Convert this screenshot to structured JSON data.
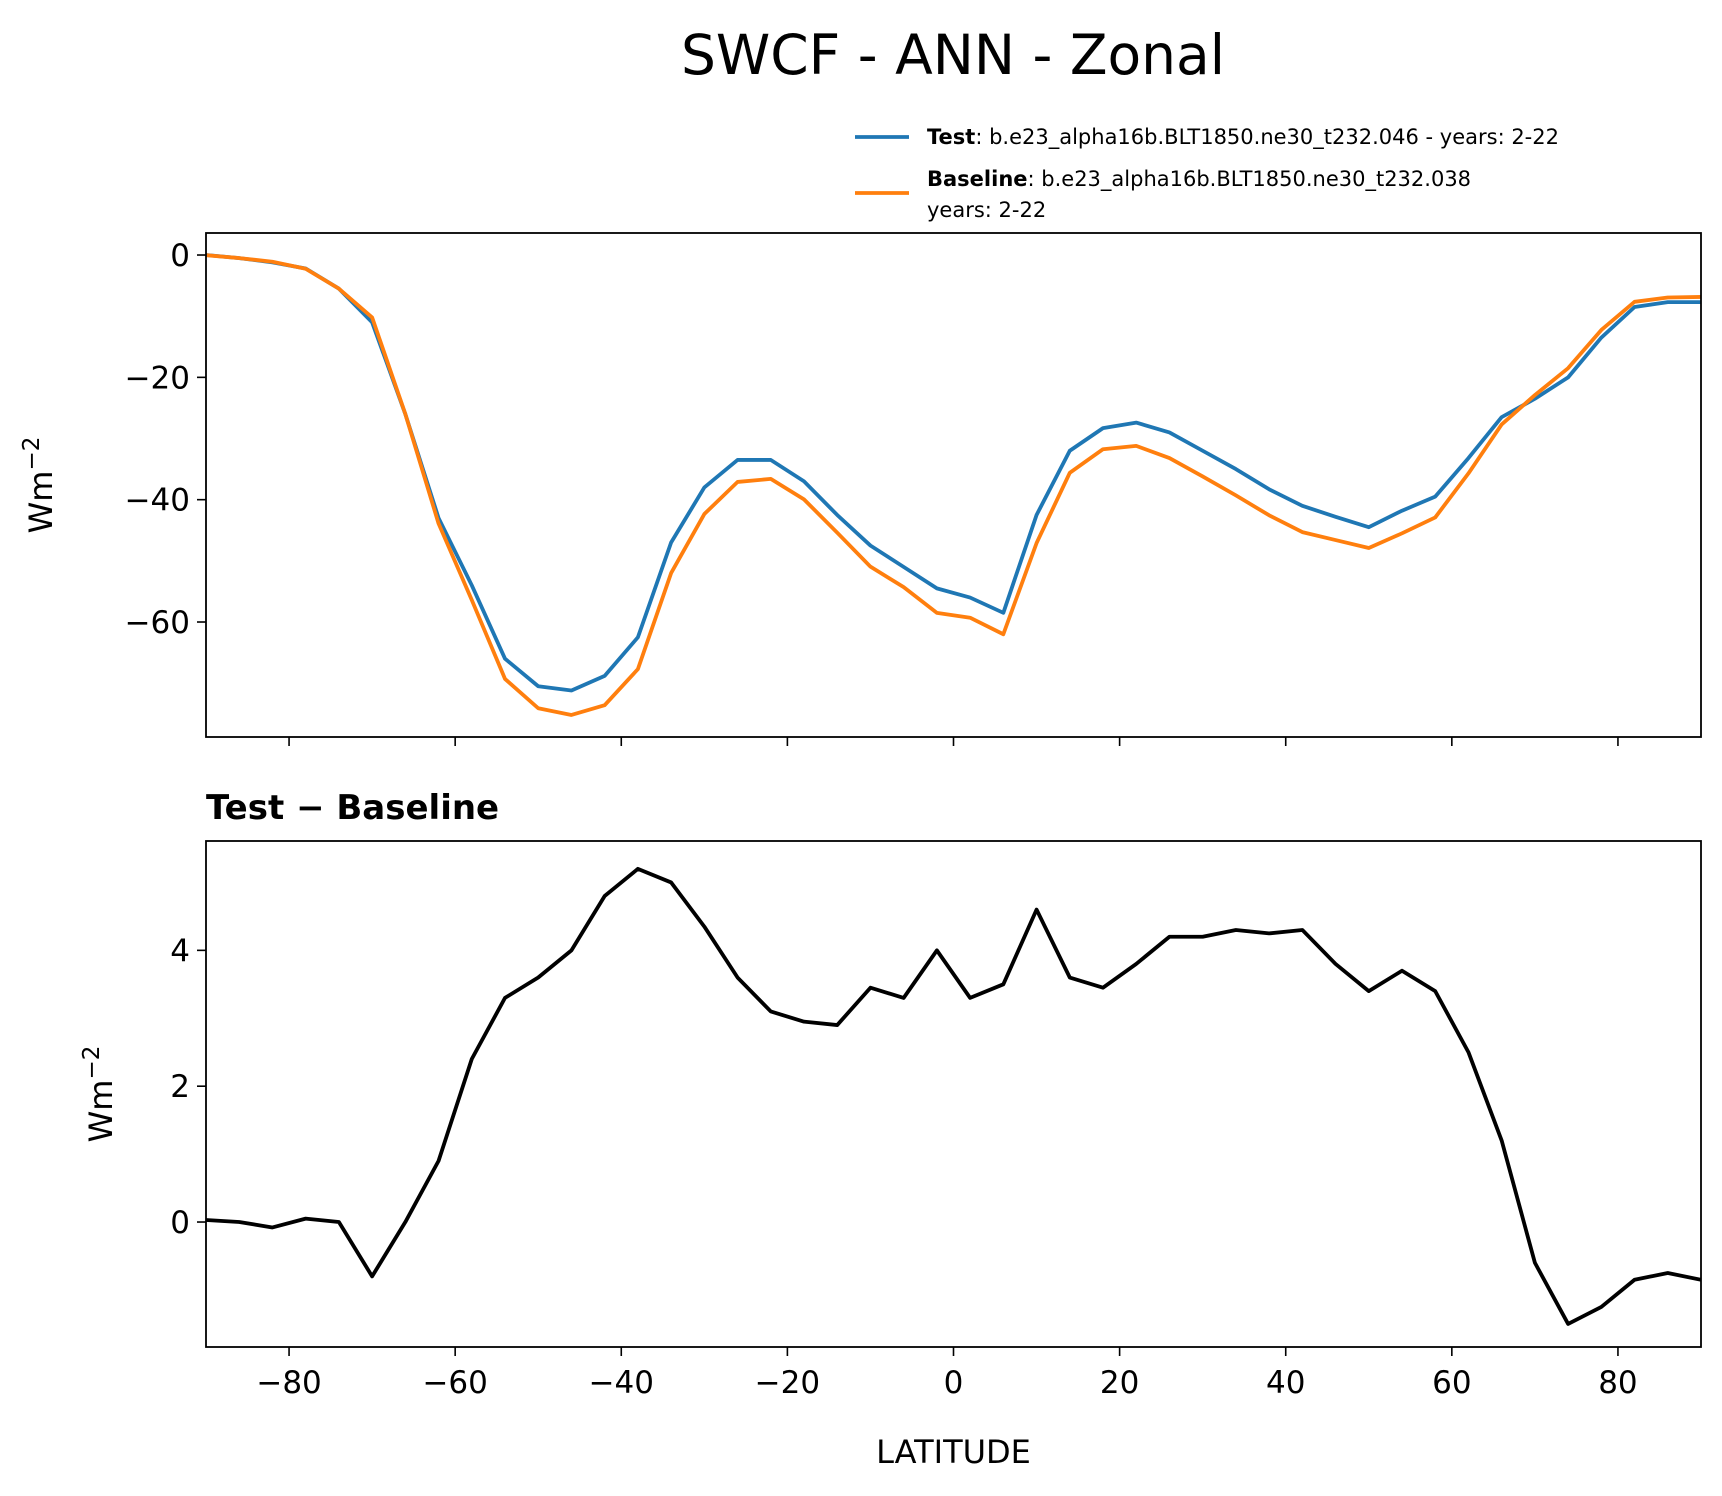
{
  "chart_data": [
    {
      "type": "line",
      "title": "SWCF - ANN - Zonal",
      "ylabel": "Wm",
      "ylabel_sup": "−2",
      "x": [
        -90,
        -86,
        -82,
        -78,
        -74,
        -70,
        -66,
        -62,
        -58,
        -54,
        -50,
        -46,
        -42,
        -38,
        -34,
        -30,
        -26,
        -22,
        -18,
        -14,
        -10,
        -6,
        -2,
        2,
        6,
        10,
        14,
        18,
        22,
        26,
        30,
        34,
        38,
        42,
        46,
        50,
        54,
        58,
        62,
        66,
        70,
        74,
        78,
        82,
        86,
        90
      ],
      "series": [
        {
          "name": "Test",
          "label_lines": [
            ": b.e23_alpha16b.BLT1850.ne30_t232.046 - years: 2-22"
          ],
          "color": "#1f77b4",
          "values": [
            0,
            -0.5,
            -1.2,
            -2.2,
            -5.5,
            -11,
            -26,
            -43,
            -54,
            -66,
            -70.5,
            -71.2,
            -68.8,
            -62.5,
            -47,
            -38,
            -33.5,
            -33.5,
            -37,
            -42.5,
            -47.5,
            -51,
            -54.5,
            -56,
            -58.5,
            -42.5,
            -32,
            -28.3,
            -27.4,
            -29,
            -32,
            -35,
            -38.3,
            -41,
            -42.8,
            -44.5,
            -41.8,
            -39.5,
            -33.2,
            -26.5,
            -23.5,
            -20,
            -13.5,
            -8.5,
            -7.7,
            -7.7
          ]
        },
        {
          "name": "Baseline",
          "label_lines": [
            ": b.e23_alpha16b.BLT1850.ne30_t232.038",
            "years: 2-22"
          ],
          "color": "#ff7f0e",
          "values": [
            -0.03,
            -0.5,
            -1.1,
            -2.25,
            -5.5,
            -10.2,
            -26,
            -43.9,
            -56.4,
            -69.3,
            -74.1,
            -75.2,
            -73.6,
            -67.7,
            -52,
            -42.35,
            -37.1,
            -36.6,
            -39.95,
            -45.4,
            -50.95,
            -54.3,
            -58.5,
            -59.3,
            -62,
            -47.1,
            -35.6,
            -31.75,
            -31.2,
            -33.2,
            -36.2,
            -39.3,
            -42.55,
            -45.3,
            -46.6,
            -47.9,
            -45.5,
            -42.9,
            -35.7,
            -27.7,
            -22.9,
            -18.5,
            -12.25,
            -7.65,
            -6.95,
            -6.85
          ]
        }
      ],
      "xlim": [
        -90,
        90
      ],
      "xticks": [
        -80,
        -60,
        -40,
        -20,
        0,
        20,
        40,
        60,
        80
      ],
      "ylim": [
        -78.8,
        3.6
      ],
      "yticks": [
        0,
        {
          "value": -20,
          "label": "−20"
        },
        {
          "value": -40,
          "label": "−40"
        },
        {
          "value": -60,
          "label": "−60"
        }
      ]
    },
    {
      "type": "line",
      "title": "Test − Baseline",
      "ylabel": "Wm",
      "ylabel_sup": "−2",
      "xlabel": "LATITUDE",
      "x": [
        -90,
        -86,
        -82,
        -78,
        -74,
        -70,
        -66,
        -62,
        -58,
        -54,
        -50,
        -46,
        -42,
        -38,
        -34,
        -30,
        -26,
        -22,
        -18,
        -14,
        -10,
        -6,
        -2,
        2,
        6,
        10,
        14,
        18,
        22,
        26,
        30,
        34,
        38,
        42,
        46,
        50,
        54,
        58,
        62,
        66,
        70,
        74,
        78,
        82,
        86,
        90
      ],
      "series": [
        {
          "color": "#000000",
          "values": [
            0.03,
            0,
            -0.08,
            0.05,
            0,
            -0.8,
            0,
            0.9,
            2.4,
            3.3,
            3.6,
            4.0,
            4.8,
            5.2,
            5.0,
            4.35,
            3.6,
            3.1,
            2.95,
            2.9,
            3.45,
            3.3,
            4.0,
            3.3,
            3.5,
            4.6,
            3.6,
            3.45,
            3.8,
            4.2,
            4.2,
            4.3,
            4.25,
            4.3,
            3.8,
            3.4,
            3.7,
            3.4,
            2.5,
            1.2,
            -0.6,
            -1.5,
            -1.25,
            -0.85,
            -0.75,
            -0.85
          ]
        }
      ],
      "xlim": [
        -90,
        90
      ],
      "xticks": [
        {
          "value": -80,
          "label": "−80"
        },
        {
          "value": -60,
          "label": "−60"
        },
        {
          "value": -40,
          "label": "−40"
        },
        {
          "value": -20,
          "label": "−20"
        },
        0,
        20,
        40,
        60,
        80
      ],
      "ylim": [
        -1.84,
        5.61
      ],
      "yticks": [
        0,
        2,
        4
      ]
    }
  ]
}
